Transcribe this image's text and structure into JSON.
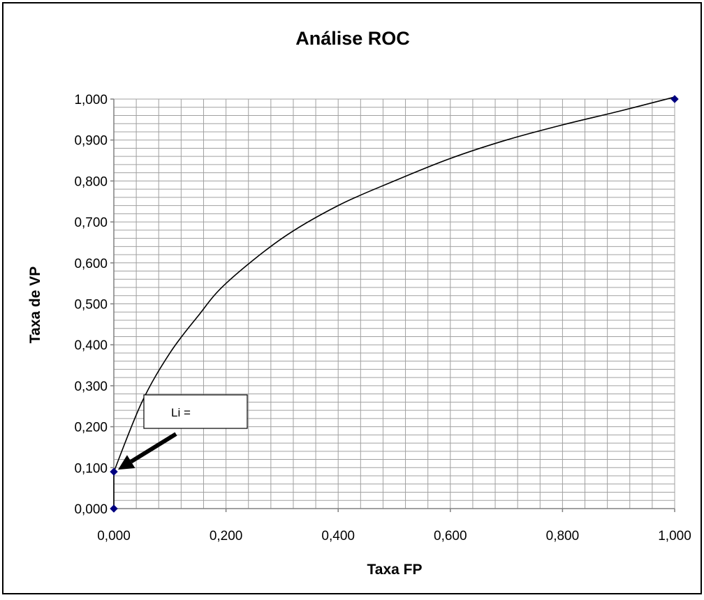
{
  "chart_data": {
    "type": "scatter",
    "title": "Análise ROC",
    "xlabel": "Taxa FP",
    "ylabel": "Taxa de VP",
    "xlim": [
      0,
      1
    ],
    "ylim": [
      0,
      1
    ],
    "x_ticks": [
      "0,000",
      "0,200",
      "0,400",
      "0,600",
      "0,800",
      "1,000"
    ],
    "y_ticks": [
      "0,000",
      "0,100",
      "0,200",
      "0,300",
      "0,400",
      "0,500",
      "0,600",
      "0,700",
      "0,800",
      "0,900",
      "1,000"
    ],
    "grid": true,
    "points": [
      {
        "x": 0.0,
        "y": 0.0
      },
      {
        "x": 0.0,
        "y": 0.09
      },
      {
        "x": 1.0,
        "y": 1.0
      }
    ],
    "curve": [
      {
        "x": 0.0,
        "y": 0.0
      },
      {
        "x": 0.0,
        "y": 0.09
      },
      {
        "x": 0.05,
        "y": 0.26
      },
      {
        "x": 0.1,
        "y": 0.38
      },
      {
        "x": 0.15,
        "y": 0.47
      },
      {
        "x": 0.2,
        "y": 0.55
      },
      {
        "x": 0.3,
        "y": 0.66
      },
      {
        "x": 0.4,
        "y": 0.74
      },
      {
        "x": 0.5,
        "y": 0.8
      },
      {
        "x": 0.6,
        "y": 0.855
      },
      {
        "x": 0.7,
        "y": 0.9
      },
      {
        "x": 0.8,
        "y": 0.937
      },
      {
        "x": 0.9,
        "y": 0.97
      },
      {
        "x": 1.0,
        "y": 1.005
      }
    ],
    "annotation": {
      "text": "Li =",
      "points_to": {
        "x": 0.0,
        "y": 0.09
      }
    },
    "colors": {
      "marker": "#000080",
      "line": "#000000",
      "grid": "#a0a0a0"
    }
  }
}
